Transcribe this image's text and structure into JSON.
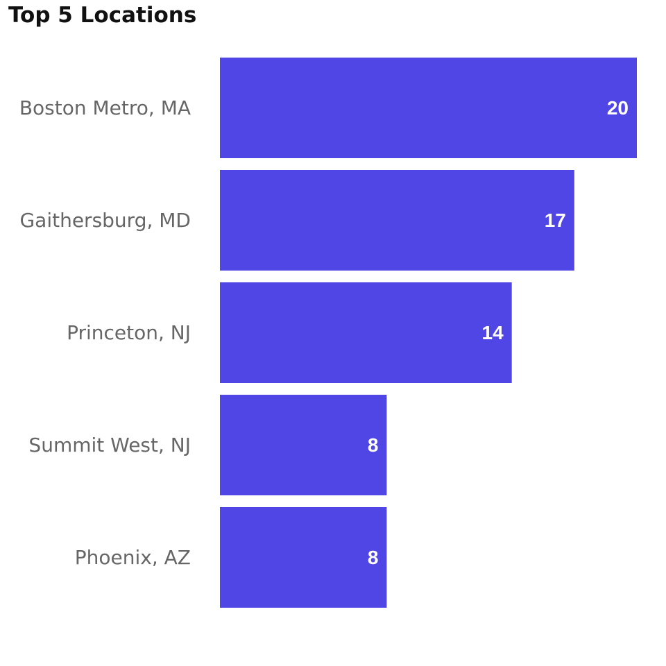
{
  "chart_data": {
    "type": "bar",
    "orientation": "horizontal",
    "title": "Top 5 Locations",
    "categories": [
      "Boston Metro, MA",
      "Gaithersburg, MD",
      "Princeton, NJ",
      "Summit West, NJ",
      "Phoenix, AZ"
    ],
    "values": [
      20,
      17,
      14,
      8,
      8
    ],
    "xlim": [
      0,
      20
    ],
    "xlabel": "",
    "ylabel": "",
    "grid": false,
    "legend": "none",
    "data_labels": true,
    "bar_color": "#5046E5",
    "label_color": "#FFFFFF",
    "category_color": "#666666"
  }
}
